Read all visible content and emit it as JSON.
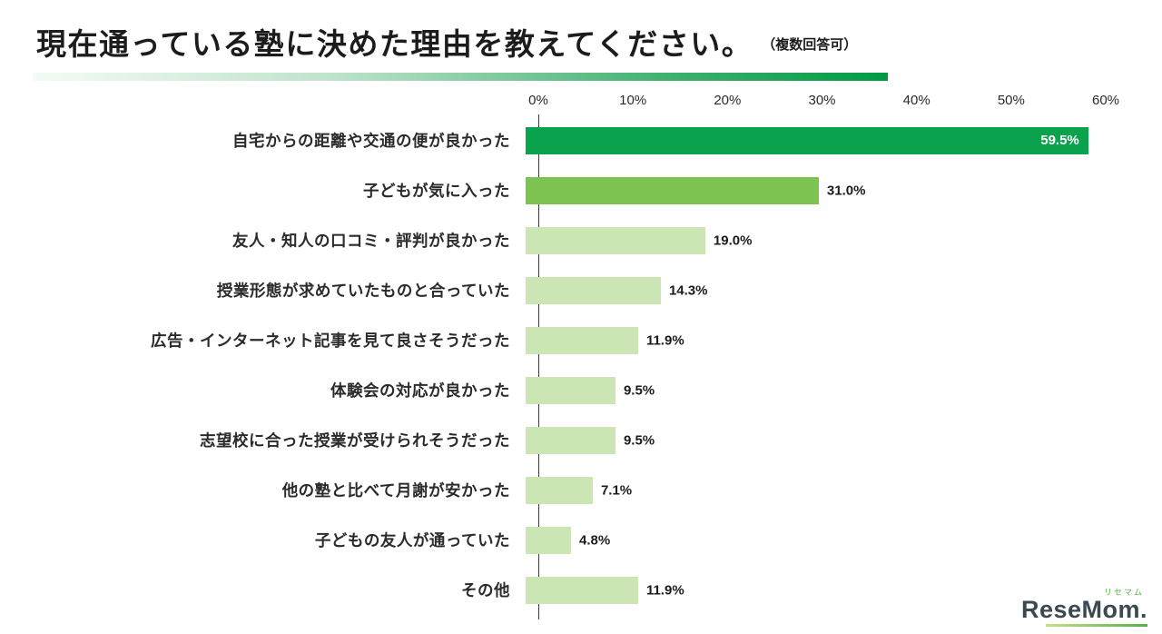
{
  "page": {
    "title": "現在通っている塾に決めた理由を教えてください。",
    "title_note": "（複数回答可）"
  },
  "chart_data": {
    "type": "bar",
    "orientation": "horizontal",
    "title": "現在通っている塾に決めた理由を教えてください。（複数回答可）",
    "categories": [
      "自宅からの距離や交通の便が良かった",
      "子どもが気に入った",
      "友人・知人の口コミ・評判が良かった",
      "授業形態が求めていたものと合っていた",
      "広告・インターネット記事を見て良さそうだった",
      "体験会の対応が良かった",
      "志望校に合った授業が受けられそうだった",
      "他の塾と比べて月謝が安かった",
      "子どもの友人が通っていた",
      "その他"
    ],
    "values": [
      59.5,
      31.0,
      19.0,
      14.3,
      11.9,
      9.5,
      9.5,
      7.1,
      4.8,
      11.9
    ],
    "value_labels": [
      "59.5%",
      "31.0%",
      "19.0%",
      "14.3%",
      "11.9%",
      "9.5%",
      "9.5%",
      "7.1%",
      "4.8%",
      "11.9%"
    ],
    "bar_colors": [
      "#0aa24c",
      "#7cc351",
      "#cbe6b4",
      "#cbe6b4",
      "#cbe6b4",
      "#cbe6b4",
      "#cbe6b4",
      "#cbe6b4",
      "#cbe6b4",
      "#cbe6b4"
    ],
    "xlim": [
      0,
      60
    ],
    "x_ticks": [
      "0%",
      "10%",
      "20%",
      "30%",
      "40%",
      "50%",
      "60%"
    ],
    "grid": "off",
    "legend": "none"
  },
  "logo": {
    "katakana": "リセマム",
    "text": "ReseMom."
  }
}
